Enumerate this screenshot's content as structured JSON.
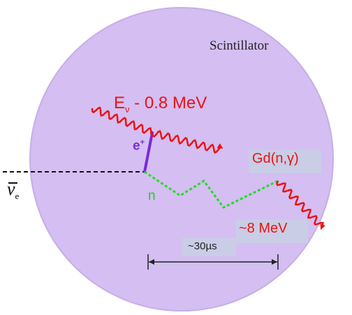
{
  "diagram": {
    "region_label": "Scintillator",
    "prompt_energy": {
      "symbol": "E",
      "subscript": "ν",
      "rest": " - 0.8 MeV"
    },
    "positron_label": {
      "base": "e",
      "sup": "+"
    },
    "neutron_label": "n",
    "antineutrino_label": {
      "symbol": "ν",
      "subscript": "e"
    },
    "capture_label": "Gd(n,γ)",
    "delayed_energy_label": "~8 MeV",
    "delay_label": "~30µs"
  },
  "colors": {
    "scintillator_fill": "#d4bef2",
    "photon": "#ee1111",
    "positron": "#7a2ad8",
    "neutron": "#22dd22",
    "label_box": "#c9cde6",
    "text_dark": "#222222"
  }
}
